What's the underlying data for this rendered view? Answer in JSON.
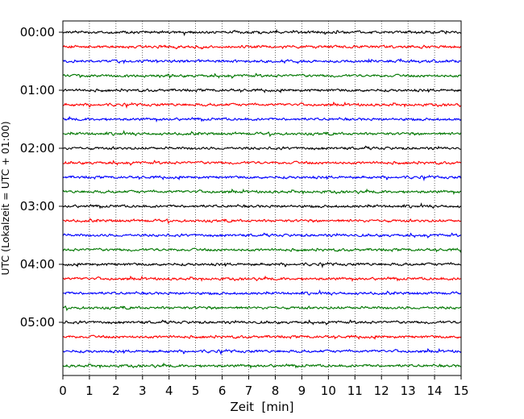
{
  "chart_data": {
    "type": "line",
    "title": "",
    "xlabel": "Zeit  [min]",
    "ylabel": "UTC (Lokalzeit = UTC + 01:00)",
    "xlim": [
      0,
      15
    ],
    "x_ticks": [
      0,
      1,
      2,
      3,
      4,
      5,
      6,
      7,
      8,
      9,
      10,
      11,
      12,
      13,
      14,
      15
    ],
    "y_ticks": [
      "00:00",
      "01:00",
      "02:00",
      "03:00",
      "04:00",
      "05:00"
    ],
    "grid": "vertical dotted lines at each minute",
    "legend": "none",
    "colors": [
      "#000000",
      "#ff0000",
      "#0000ff",
      "#007700"
    ],
    "series_description": "Helicorder: one 15-minute seismic trace per row, rows cycle black, red, blue, green",
    "row_labels": [
      "00:00",
      "00:15",
      "00:30",
      "00:45",
      "01:00",
      "01:15",
      "01:30",
      "01:45",
      "02:00",
      "02:15",
      "02:30",
      "02:45",
      "03:00",
      "03:15",
      "03:30",
      "03:45",
      "04:00",
      "04:15",
      "04:30",
      "04:45",
      "05:00",
      "05:15",
      "05:30",
      "05:45"
    ]
  }
}
